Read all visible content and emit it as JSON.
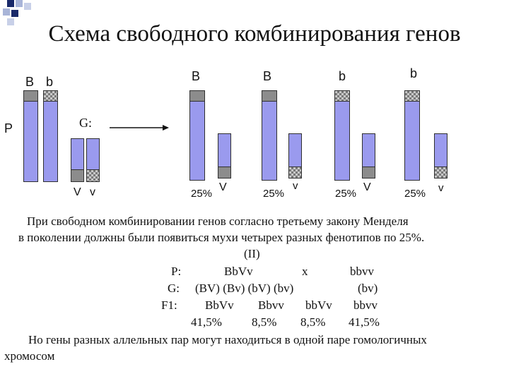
{
  "title": "Схема свободного комбинирования генов",
  "parents": {
    "label": "P",
    "gene_top_1": "B",
    "gene_top_2": "b",
    "gamete_label": "G:",
    "gene_bottom_1": "V",
    "gene_bottom_2": "v"
  },
  "gametes": [
    {
      "top": "B",
      "bottom": "V",
      "percent": "25%"
    },
    {
      "top": "B",
      "bottom": "v",
      "percent": "25%"
    },
    {
      "top": "b",
      "bottom": "V",
      "percent": "25%"
    },
    {
      "top": "b",
      "bottom": "v",
      "percent": "25%"
    }
  ],
  "text": {
    "line1": "При свободном комбинировании генов согласно третьему закону Менделя",
    "line2": "в поколении должны были появиться мухи четырех разных фенотипов по 25%.",
    "line3": "(II)",
    "p_label": "P:",
    "p_genotype1": "BbVv",
    "p_cross": "x",
    "p_genotype2": "bbvv",
    "g_label": "G:",
    "g_gametes1": "(BV) (Bv) (bV) (bv)",
    "g_gametes2": "(bv)",
    "f1_label": "F1:",
    "f1_genotypes": [
      "BbVv",
      "Bbvv",
      "bbVv",
      "bbvv"
    ],
    "f1_percents": [
      "41,5%",
      "8,5%",
      "8,5%",
      "41,5%"
    ],
    "footer1": "Но гены разных аллельных пар могут находиться в одной паре гомологичных",
    "footer2": "хромосом"
  },
  "colors": {
    "chromosome": "#9a9aee",
    "bullet_dark": "#1a2a6a",
    "bullet_light": "#a8b4d8"
  }
}
